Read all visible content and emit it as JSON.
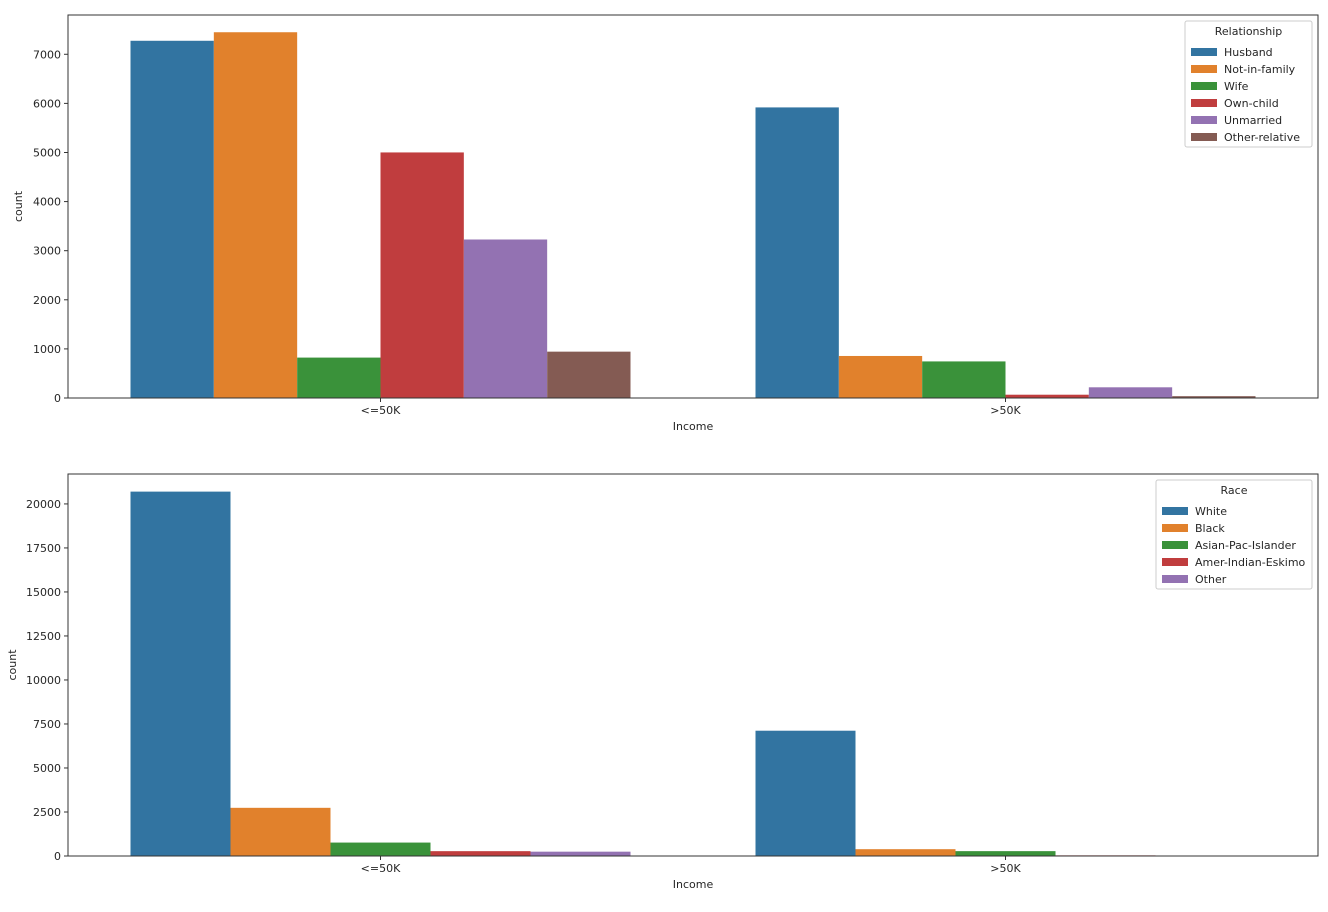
{
  "chart_data": [
    {
      "type": "bar",
      "xlabel": "Income",
      "ylabel": "count",
      "categories": [
        "<=50K",
        ">50K"
      ],
      "ylim": [
        0,
        7800
      ],
      "yticks": [
        0,
        1000,
        2000,
        3000,
        4000,
        5000,
        6000,
        7000
      ],
      "legend": {
        "title": "Relationship",
        "position": "top-right"
      },
      "grid": false,
      "series": [
        {
          "name": "Husband",
          "color": "#3274a1",
          "values": [
            7275,
            5918
          ]
        },
        {
          "name": "Not-in-family",
          "color": "#e1812c",
          "values": [
            7449,
            856
          ]
        },
        {
          "name": "Wife",
          "color": "#3a923a",
          "values": [
            823,
            745
          ]
        },
        {
          "name": "Own-child",
          "color": "#c03d3e",
          "values": [
            5001,
            67
          ]
        },
        {
          "name": "Unmarried",
          "color": "#9372b2",
          "values": [
            3228,
            218
          ]
        },
        {
          "name": "Other-relative",
          "color": "#845b53",
          "values": [
            944,
            37
          ]
        }
      ]
    },
    {
      "type": "bar",
      "xlabel": "Income",
      "ylabel": "count",
      "categories": [
        "<=50K",
        ">50K"
      ],
      "ylim": [
        0,
        21700
      ],
      "yticks": [
        0,
        2500,
        5000,
        7500,
        10000,
        12500,
        15000,
        17500,
        20000
      ],
      "legend": {
        "title": "Race",
        "position": "top-right"
      },
      "grid": false,
      "series": [
        {
          "name": "White",
          "color": "#3274a1",
          "values": [
            20699,
            7117
          ]
        },
        {
          "name": "Black",
          "color": "#e1812c",
          "values": [
            2737,
            387
          ]
        },
        {
          "name": "Asian-Pac-Islander",
          "color": "#3a923a",
          "values": [
            763,
            276
          ]
        },
        {
          "name": "Amer-Indian-Eskimo",
          "color": "#c03d3e",
          "values": [
            275,
            36
          ]
        },
        {
          "name": "Other",
          "color": "#9372b2",
          "values": [
            246,
            25
          ]
        }
      ]
    }
  ]
}
